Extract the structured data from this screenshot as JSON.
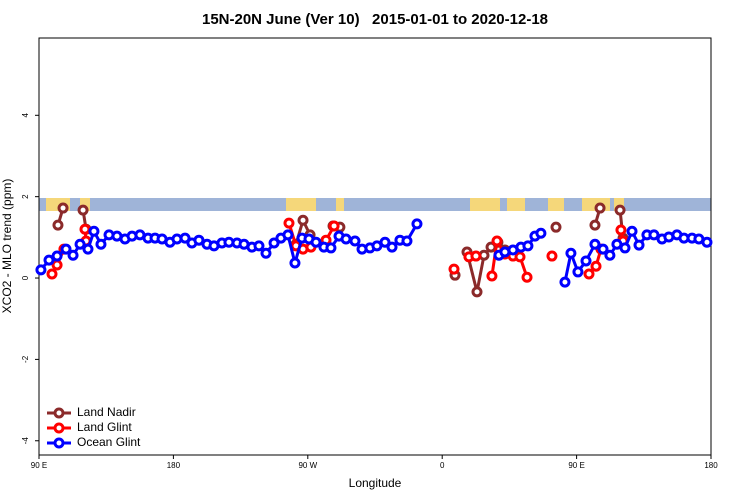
{
  "chart_data": {
    "type": "line",
    "title": "15N-20N June (Ver 10)   2015-01-01 to 2020-12-18",
    "xlabel": "Longitude",
    "ylabel": "XCO2 - MLO trend (ppm)",
    "xlim": [
      90,
      540
    ],
    "ylim": [
      -4.35,
      5.9
    ],
    "xticks": [
      {
        "value": 90,
        "label": "90 E"
      },
      180,
      {
        "value": 270,
        "label": "90 W"
      },
      {
        "value": 360,
        "label": "0"
      },
      {
        "value": 450,
        "label": "90 E"
      },
      {
        "value": 540,
        "label": "180"
      }
    ],
    "yticks": [
      -4,
      -2,
      0,
      2,
      4
    ],
    "legend": "bottom-left",
    "series": [
      {
        "name": "Land Nadir",
        "color": "#8b2a2a",
        "x": [
          102.7,
          106.1,
          null,
          119.5,
          121.5,
          null,
          262.1,
          266.8,
          271.5,
          null,
          286.9,
          291.5,
          null,
          368.6,
          null,
          376.6,
          383.3,
          388.0,
          392.7,
          397.3,
          402.0,
          null,
          436.2,
          null,
          462.3,
          465.7,
          null,
          479.1,
          481.1
        ],
        "values": [
          1.3,
          1.72,
          null,
          1.67,
          1.2,
          null,
          0.83,
          1.42,
          1.06,
          null,
          1.28,
          1.25,
          null,
          0.07,
          null,
          0.64,
          -0.34,
          0.56,
          0.76,
          0.88,
          0.69,
          null,
          1.25,
          null,
          1.3,
          1.72,
          null,
          1.67,
          0.98
        ]
      },
      {
        "name": "Land Glint",
        "color": "#ff0000",
        "x": [
          98.7,
          102.1,
          106.7,
          null,
          120.8,
          121.5,
          null,
          257.4,
          262.1,
          266.8,
          272.1,
          null,
          282.2,
          287.6,
          null,
          367.9,
          null,
          377.9,
          382.6,
          null,
          393.3,
          396.7,
          402.0,
          407.4,
          412.1,
          416.8,
          null,
          433.5,
          null,
          458.3,
          463.0,
          466.3,
          null,
          479.7,
          481.1
        ],
        "values": [
          0.1,
          0.32,
          0.71,
          null,
          1.2,
          0.91,
          null,
          1.35,
          0.79,
          0.71,
          0.76,
          null,
          0.93,
          1.28,
          null,
          0.22,
          null,
          0.52,
          0.54,
          null,
          0.05,
          0.91,
          0.59,
          0.54,
          0.52,
          0.02,
          null,
          0.54,
          null,
          0.1,
          0.29,
          0.71,
          null,
          1.18,
          0.91
        ]
      },
      {
        "name": "Ocean Glint",
        "color": "#0000ff",
        "x": [
          91.3,
          96.7,
          102.1,
          108.1,
          112.8,
          117.5,
          122.8,
          126.8,
          131.5,
          136.9,
          142.2,
          147.6,
          152.3,
          157.6,
          163.0,
          167.7,
          172.4,
          177.7,
          182.4,
          187.8,
          192.4,
          197.1,
          202.5,
          207.2,
          212.5,
          217.2,
          222.6,
          227.3,
          232.6,
          237.3,
          242.0,
          247.4,
          252.0,
          256.7,
          261.4,
          266.1,
          270.8,
          275.5,
          280.8,
          285.5,
          290.9,
          295.6,
          301.6,
          306.3,
          311.6,
          316.3,
          321.7,
          326.4,
          331.7,
          336.4,
          343.1,
          null,
          398.0,
          402.0,
          407.4,
          412.7,
          417.4,
          422.1,
          426.1,
          null,
          442.2,
          446.2,
          450.9,
          456.3,
          462.3,
          467.7,
          472.3,
          477.0,
          482.4,
          487.1,
          491.8,
          497.1,
          501.8,
          507.2,
          511.8,
          517.2,
          521.9,
          527.3,
          531.9,
          537.3
        ],
        "values": [
          0.2,
          0.44,
          0.54,
          0.71,
          0.56,
          0.83,
          0.71,
          1.15,
          0.83,
          1.06,
          1.03,
          0.96,
          1.03,
          1.06,
          0.98,
          0.98,
          0.96,
          0.88,
          0.96,
          0.98,
          0.86,
          0.93,
          0.83,
          0.79,
          0.86,
          0.88,
          0.86,
          0.83,
          0.76,
          0.79,
          0.61,
          0.86,
          0.98,
          1.06,
          0.37,
          0.98,
          0.96,
          0.88,
          0.76,
          0.74,
          1.03,
          0.96,
          0.91,
          0.71,
          0.74,
          0.79,
          0.88,
          0.76,
          0.93,
          0.91,
          1.33,
          null,
          0.56,
          0.64,
          0.69,
          0.76,
          0.79,
          1.03,
          1.1,
          null,
          -0.1,
          0.61,
          0.15,
          0.42,
          0.83,
          0.71,
          0.56,
          0.83,
          0.74,
          1.15,
          0.81,
          1.06,
          1.06,
          0.96,
          1.01,
          1.06,
          0.98,
          0.98,
          0.96,
          0.88
        ]
      }
    ]
  }
}
